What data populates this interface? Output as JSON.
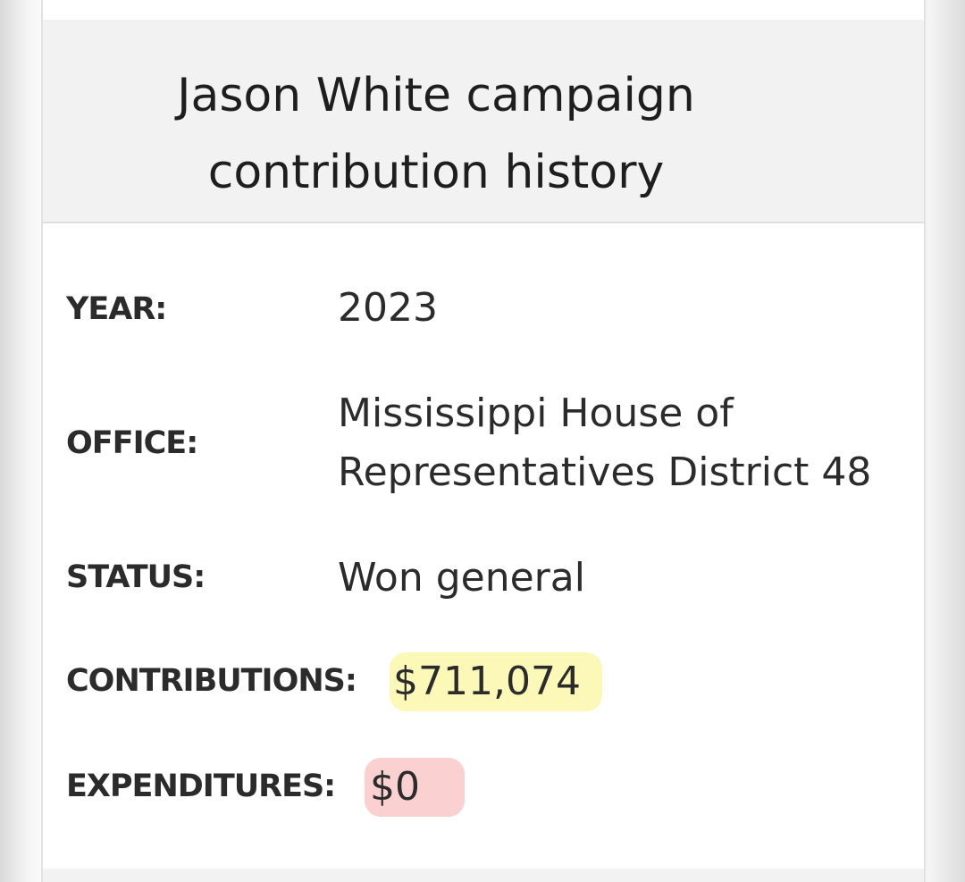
{
  "header": {
    "title": "Jason White campaign contribution history"
  },
  "rows": [
    {
      "label": "YEAR:",
      "value": "2023"
    },
    {
      "label": "OFFICE:",
      "value": "Mississippi House of Representatives District 48"
    },
    {
      "label": "STATUS:",
      "value": "Won general"
    },
    {
      "label": "CONTRIBUTIONS:",
      "value": "$711,074"
    },
    {
      "label": "EXPENDITURES:",
      "value": "$0"
    }
  ]
}
